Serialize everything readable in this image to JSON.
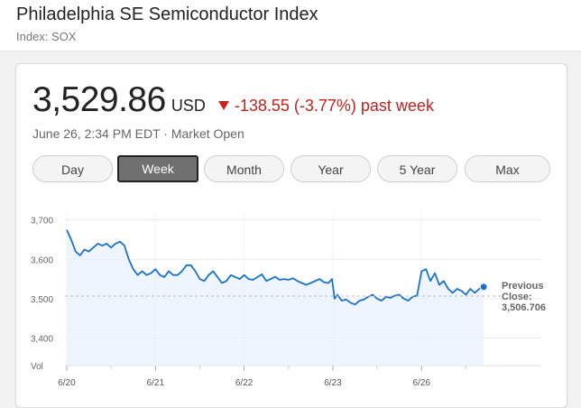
{
  "header": {
    "title": "Philadelphia SE Semiconductor Index",
    "subtitle": "Index: SOX"
  },
  "quote": {
    "price": "3,529.86",
    "currency": "USD",
    "change": "-138.55 (-3.77%) past week",
    "timestamp": "June 26, 2:34 PM EDT",
    "separator": "·",
    "market_status": "Market Open"
  },
  "tabs": [
    {
      "label": "Day"
    },
    {
      "label": "Week",
      "active": true
    },
    {
      "label": "Month"
    },
    {
      "label": "Year"
    },
    {
      "label": "5 Year"
    },
    {
      "label": "Max"
    }
  ],
  "colors": {
    "line": "#1a73c8",
    "down": "#c5221f",
    "fill": "#e8f1fb"
  },
  "chart_data": {
    "type": "line",
    "ylim": [
      3330,
      3720
    ],
    "ytick_labels": [
      "3,700",
      "3,600",
      "3,500",
      "3,400"
    ],
    "yticks": [
      3700,
      3600,
      3500,
      3400
    ],
    "vol_label": "Vol",
    "xtick_labels": [
      "6/20",
      "6/21",
      "6/22",
      "6/23",
      "6/26"
    ],
    "xticks": [
      0,
      1,
      2,
      3,
      4
    ],
    "previous_close": {
      "label_line1": "Previous",
      "label_line2": "Close:",
      "value": 3506.706,
      "value_label": "3,506.706"
    },
    "x": [
      0,
      0.05,
      0.1,
      0.15,
      0.2,
      0.25,
      0.3,
      0.35,
      0.4,
      0.45,
      0.5,
      0.55,
      0.6,
      0.65,
      0.7,
      0.75,
      0.8,
      0.85,
      0.9,
      0.95,
      1.0,
      1.05,
      1.1,
      1.15,
      1.2,
      1.25,
      1.3,
      1.35,
      1.4,
      1.45,
      1.5,
      1.55,
      1.6,
      1.65,
      1.7,
      1.75,
      1.8,
      1.85,
      1.9,
      1.95,
      2.0,
      2.05,
      2.1,
      2.15,
      2.2,
      2.25,
      2.3,
      2.35,
      2.4,
      2.45,
      2.5,
      2.55,
      2.6,
      2.65,
      2.7,
      2.75,
      2.8,
      2.85,
      2.9,
      2.95,
      2.99,
      3.02,
      3.05,
      3.1,
      3.15,
      3.2,
      3.25,
      3.3,
      3.35,
      3.4,
      3.45,
      3.5,
      3.55,
      3.6,
      3.65,
      3.7,
      3.75,
      3.8,
      3.85,
      3.9,
      3.95,
      4.0,
      4.05,
      4.1,
      4.15,
      4.2,
      4.25,
      4.3,
      4.35,
      4.4,
      4.45,
      4.5,
      4.55,
      4.6,
      4.65,
      4.7
    ],
    "y": [
      3675,
      3650,
      3620,
      3610,
      3625,
      3620,
      3630,
      3640,
      3635,
      3640,
      3630,
      3640,
      3645,
      3635,
      3600,
      3575,
      3560,
      3570,
      3560,
      3565,
      3575,
      3560,
      3555,
      3570,
      3560,
      3560,
      3570,
      3585,
      3585,
      3570,
      3550,
      3545,
      3560,
      3570,
      3555,
      3540,
      3545,
      3560,
      3555,
      3550,
      3560,
      3550,
      3548,
      3555,
      3562,
      3545,
      3550,
      3556,
      3548,
      3550,
      3548,
      3552,
      3545,
      3540,
      3535,
      3540,
      3545,
      3550,
      3542,
      3540,
      3550,
      3500,
      3510,
      3495,
      3498,
      3490,
      3485,
      3495,
      3498,
      3505,
      3510,
      3500,
      3495,
      3505,
      3502,
      3508,
      3510,
      3500,
      3495,
      3505,
      3508,
      3570,
      3575,
      3545,
      3565,
      3535,
      3545,
      3525,
      3515,
      3525,
      3520,
      3510,
      3525,
      3515,
      3525,
      3530
    ]
  }
}
